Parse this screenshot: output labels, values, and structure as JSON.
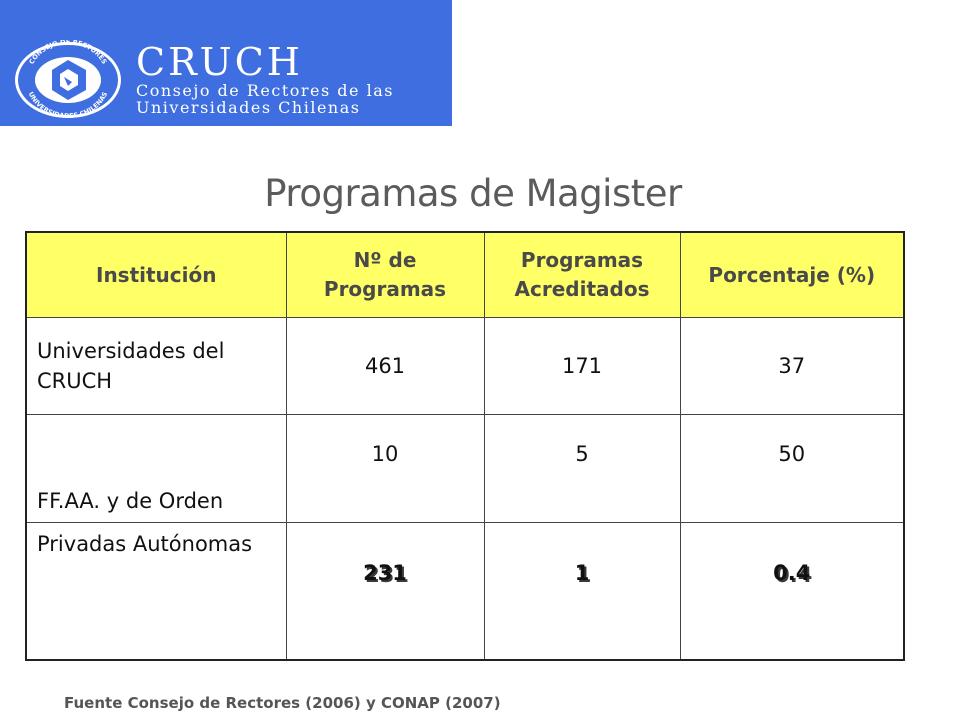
{
  "header": {
    "brand_name": "CRUCH",
    "brand_sub_1": "Consejo de Rectores de las",
    "brand_sub_2": "Universidades Chilenas",
    "seal_text_top": "CONSEJO DE RECTORES",
    "seal_text_bottom": "UNIVERSIDADES CHILENAS",
    "banner_color": "#3f6ee0"
  },
  "title": "Programas de Magister",
  "table": {
    "columns": [
      "Institución",
      "Nº de Programas",
      "Programas Acreditados",
      "Porcentaje (%)"
    ],
    "rows": [
      {
        "institucion": "Universidades del CRUCH",
        "programas": "461",
        "acreditados": "171",
        "porcentaje": "37"
      },
      {
        "institucion": "FF.AA. y de Orden",
        "programas": "10",
        "acreditados": "5",
        "porcentaje": "50"
      },
      {
        "institucion": "Privadas Autónomas",
        "programas": "231",
        "acreditados": "1",
        "porcentaje": "0.4"
      }
    ],
    "header_color": "#ffff66",
    "highlight_color": "#ee1111"
  },
  "source": "Fuente Consejo de Rectores (2006)  y CONAP (2007)"
}
